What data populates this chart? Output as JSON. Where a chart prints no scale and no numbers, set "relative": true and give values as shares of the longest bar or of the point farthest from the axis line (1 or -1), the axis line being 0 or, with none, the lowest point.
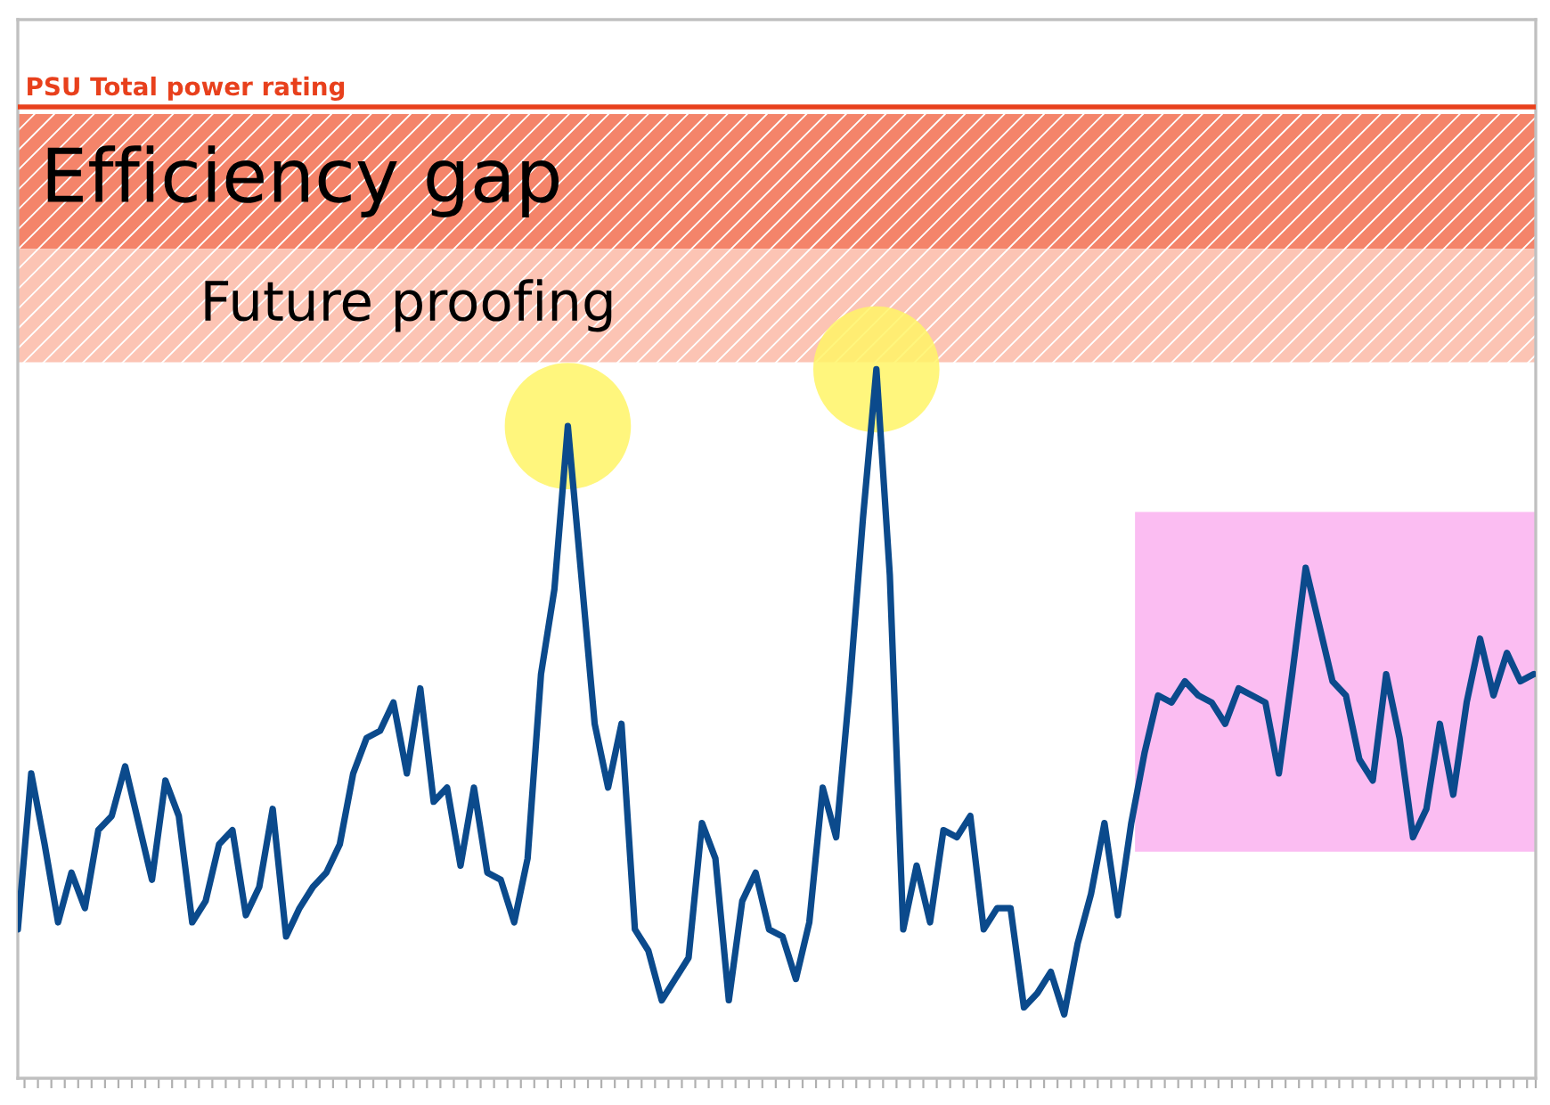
{
  "chart_data": {
    "type": "line",
    "relative": true,
    "tick_labels": false,
    "grid": false,
    "legend": false,
    "marker": "none",
    "line_style": "solid",
    "categories": [
      null,
      null,
      null,
      null,
      null,
      null,
      null,
      null,
      null,
      null,
      null,
      null,
      null,
      null,
      null,
      null,
      null,
      null,
      null,
      null,
      null,
      null,
      null,
      null,
      null,
      null,
      null,
      null,
      null,
      null,
      null,
      null,
      null,
      null,
      null,
      null,
      null,
      null,
      null,
      null,
      null,
      null,
      null,
      null,
      null,
      null,
      null,
      null,
      null,
      null,
      null,
      null,
      null,
      null,
      null,
      null,
      null,
      null,
      null,
      null,
      null,
      null,
      null,
      null,
      null,
      null,
      null,
      null,
      null,
      null,
      null,
      null,
      null,
      null,
      null,
      null,
      null,
      null,
      null,
      null,
      null,
      null,
      null,
      null,
      null,
      null,
      null,
      null,
      null,
      null,
      null,
      null,
      null,
      null,
      null,
      null,
      null,
      null,
      null,
      null,
      null,
      null,
      null,
      null,
      null,
      null,
      null,
      null,
      null,
      null,
      null,
      null,
      null,
      null
    ],
    "series": [
      {
        "color": "#0b4a8c",
        "values": [
          0.21,
          0.43,
          0.33,
          0.22,
          0.29,
          0.24,
          0.35,
          0.37,
          0.44,
          0.36,
          0.28,
          0.42,
          0.37,
          0.22,
          0.25,
          0.33,
          0.35,
          0.23,
          0.27,
          0.38,
          0.2,
          0.24,
          0.27,
          0.29,
          0.33,
          0.43,
          0.48,
          0.49,
          0.53,
          0.43,
          0.55,
          0.39,
          0.41,
          0.3,
          0.41,
          0.29,
          0.28,
          0.22,
          0.31,
          0.57,
          0.69,
          0.92,
          0.71,
          0.5,
          0.41,
          0.5,
          0.21,
          0.18,
          0.11,
          0.14,
          0.17,
          0.36,
          0.31,
          0.11,
          0.25,
          0.29,
          0.21,
          0.2,
          0.14,
          0.22,
          0.41,
          0.34,
          0.55,
          0.79,
          1,
          0.71,
          0.21,
          0.3,
          0.22,
          0.35,
          0.34,
          0.37,
          0.21,
          0.24,
          0.24,
          0.1,
          0.12,
          0.15,
          0.09,
          0.19,
          0.26,
          0.36,
          0.23,
          0.36,
          0.46,
          0.54,
          0.53,
          0.56,
          0.54,
          0.53,
          0.5,
          0.55,
          0.54,
          0.53,
          0.43,
          0.57,
          0.72,
          0.64,
          0.56,
          0.54,
          0.45,
          0.42,
          0.57,
          0.48,
          0.34,
          0.38,
          0.5,
          0.4,
          0.53,
          0.62,
          0.54,
          0.6,
          0.56,
          0.57
        ]
      }
    ],
    "ref_lines": [
      {
        "axis": "y",
        "value": 1.37,
        "label": "PSU Total power rating",
        "color": "#e8401c"
      }
    ],
    "bands": [
      {
        "axis": "y",
        "from": 1.17,
        "to": 1.36,
        "label": "Efficiency gap",
        "color": "#f4846a"
      },
      {
        "axis": "y",
        "from": 1.01,
        "to": 1.17,
        "label": "Future proofing",
        "color": "#fcc4b4"
      }
    ]
  }
}
